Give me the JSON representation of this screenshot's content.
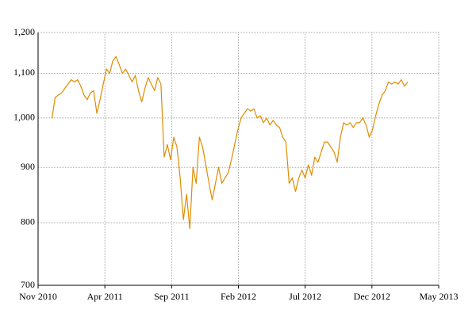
{
  "chart_data": {
    "type": "line",
    "color": "#e08c00",
    "log_scale": true,
    "grid": true,
    "xlim": [
      2010.8333,
      2013.3333
    ],
    "xticks": [
      {
        "value": 2010.8333,
        "label": "Nov 2010"
      },
      {
        "value": 2011.25,
        "label": "Apr 2011"
      },
      {
        "value": 2011.6667,
        "label": "Sep 2011"
      },
      {
        "value": 2012.0833,
        "label": "Feb 2012"
      },
      {
        "value": 2012.5,
        "label": "Jul 2012"
      },
      {
        "value": 2012.9167,
        "label": "Dec 2012"
      },
      {
        "value": 2013.3333,
        "label": "May 2013"
      }
    ],
    "ylim": [
      700,
      1200
    ],
    "yticks": [
      700,
      800,
      900,
      {
        "value": 1000,
        "label": "1,000"
      },
      {
        "value": 1100,
        "label": "1,100"
      },
      {
        "value": 1200,
        "label": "1,200"
      }
    ],
    "x": [
      2010.92,
      2010.94,
      2010.96,
      2010.98,
      2011.0,
      2011.02,
      2011.04,
      2011.06,
      2011.08,
      2011.1,
      2011.12,
      2011.14,
      2011.16,
      2011.18,
      2011.2,
      2011.22,
      2011.24,
      2011.26,
      2011.28,
      2011.3,
      2011.32,
      2011.34,
      2011.36,
      2011.38,
      2011.4,
      2011.42,
      2011.44,
      2011.46,
      2011.48,
      2011.5,
      2011.52,
      2011.54,
      2011.56,
      2011.58,
      2011.6,
      2011.62,
      2011.64,
      2011.66,
      2011.68,
      2011.7,
      2011.72,
      2011.74,
      2011.76,
      2011.78,
      2011.8,
      2011.82,
      2011.84,
      2011.86,
      2011.88,
      2011.9,
      2011.92,
      2011.94,
      2011.96,
      2011.98,
      2012.0,
      2012.02,
      2012.04,
      2012.06,
      2012.08,
      2012.1,
      2012.12,
      2012.14,
      2012.16,
      2012.18,
      2012.2,
      2012.22,
      2012.24,
      2012.26,
      2012.28,
      2012.3,
      2012.32,
      2012.34,
      2012.36,
      2012.38,
      2012.4,
      2012.42,
      2012.44,
      2012.46,
      2012.48,
      2012.5,
      2012.52,
      2012.54,
      2012.56,
      2012.58,
      2012.6,
      2012.62,
      2012.64,
      2012.66,
      2012.68,
      2012.7,
      2012.72,
      2012.74,
      2012.76,
      2012.78,
      2012.8,
      2012.82,
      2012.84,
      2012.86,
      2012.88,
      2012.9,
      2012.92,
      2012.94,
      2012.96,
      2012.98,
      2013.0,
      2013.02,
      2013.04,
      2013.06,
      2013.08,
      2013.1,
      2013.12,
      2013.14
    ],
    "values": [
      1000,
      1045,
      1050,
      1055,
      1065,
      1075,
      1085,
      1080,
      1085,
      1070,
      1050,
      1040,
      1055,
      1060,
      1010,
      1040,
      1075,
      1110,
      1100,
      1130,
      1140,
      1120,
      1100,
      1110,
      1095,
      1080,
      1095,
      1060,
      1035,
      1065,
      1090,
      1075,
      1060,
      1090,
      1075,
      920,
      945,
      915,
      960,
      940,
      880,
      805,
      850,
      790,
      900,
      870,
      960,
      940,
      905,
      870,
      840,
      870,
      900,
      870,
      880,
      890,
      915,
      945,
      975,
      1000,
      1010,
      1020,
      1015,
      1020,
      1000,
      1005,
      990,
      1000,
      985,
      995,
      985,
      980,
      960,
      950,
      870,
      880,
      855,
      880,
      895,
      880,
      905,
      885,
      920,
      910,
      930,
      950,
      950,
      940,
      930,
      910,
      960,
      990,
      985,
      990,
      980,
      990,
      990,
      1000,
      985,
      960,
      975,
      1005,
      1030,
      1050,
      1060,
      1080,
      1075,
      1080,
      1075,
      1085,
      1070,
      1080
    ]
  }
}
